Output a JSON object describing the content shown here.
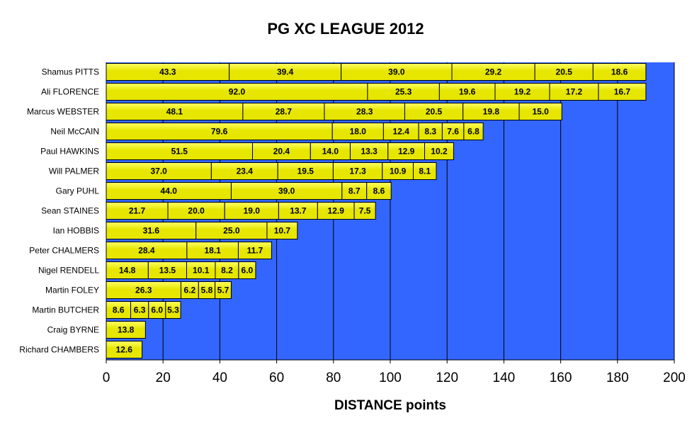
{
  "colors": {
    "plot_bg": "#3366ff",
    "bar_fill": "#e6e600",
    "bar_fill_light": "#ffff66",
    "bar_stroke": "#000000",
    "gridline": "#000000"
  },
  "chart_data": {
    "type": "bar",
    "orientation": "horizontal",
    "stacked": true,
    "title": "PG XC LEAGUE 2012",
    "xlabel": "DISTANCE points",
    "ylabel": "",
    "xlim": [
      0,
      200
    ],
    "xticks": [
      0,
      20,
      40,
      60,
      80,
      100,
      120,
      140,
      160,
      180,
      200
    ],
    "grid": "vertical",
    "legend": "none",
    "categories": [
      "Shamus PITTS",
      "Ali FLORENCE",
      "Marcus WEBSTER",
      "Neil McCAIN",
      "Paul HAWKINS",
      "Will PALMER",
      "Gary PUHL",
      "Sean STAINES",
      "Ian HOBBIS",
      "Peter CHALMERS",
      "Nigel RENDELL",
      "Martin FOLEY",
      "Martin BUTCHER",
      "Craig BYRNE",
      "Richard CHAMBERS"
    ],
    "values": [
      [
        43.3,
        39.4,
        39.0,
        29.2,
        20.5,
        18.6
      ],
      [
        92.0,
        25.3,
        19.6,
        19.2,
        17.2,
        16.7
      ],
      [
        48.1,
        28.7,
        28.3,
        20.5,
        19.8,
        15.0
      ],
      [
        79.6,
        18.0,
        12.4,
        8.3,
        7.6,
        6.8
      ],
      [
        51.5,
        20.4,
        14.0,
        13.3,
        12.9,
        10.2
      ],
      [
        37.0,
        23.4,
        19.5,
        17.3,
        10.9,
        8.1
      ],
      [
        44.0,
        39.0,
        8.7,
        8.6
      ],
      [
        21.7,
        20.0,
        19.0,
        13.7,
        12.9,
        7.5
      ],
      [
        31.6,
        25.0,
        10.7
      ],
      [
        28.4,
        18.1,
        11.7
      ],
      [
        14.8,
        13.5,
        10.1,
        8.2,
        6.0
      ],
      [
        26.3,
        6.2,
        5.8,
        5.7
      ],
      [
        8.6,
        6.3,
        6.0,
        5.3
      ],
      [
        13.8
      ],
      [
        12.6
      ]
    ]
  }
}
